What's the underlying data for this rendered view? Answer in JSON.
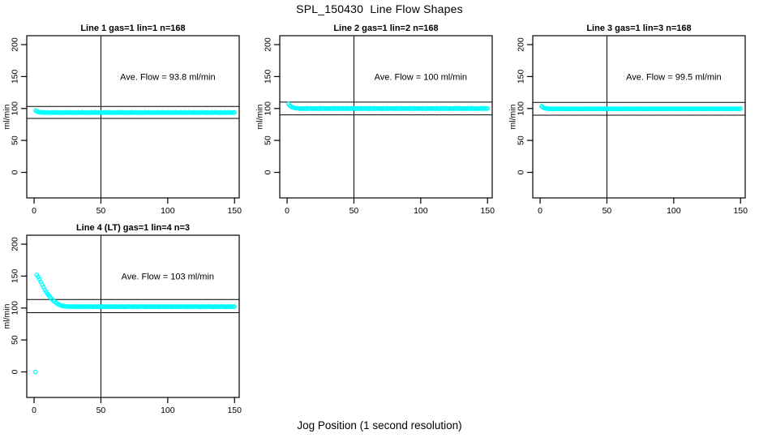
{
  "figure": {
    "title": "SPL_150430  Line Flow Shapes",
    "xlabel": "Jog Position (1 second resolution)",
    "ylabel": "ml/min",
    "background_color": "#FFFFFF",
    "axis_color": "#000000",
    "point_color": "#00FFFF"
  },
  "chart_data": {
    "type": "scatter",
    "layout_hint": "2x3 grid of panels, 4 panels used (top-left, top-middle, top-right, bottom-left); open-circle cyan markers; black box axes; horizontal reference lines at +/-10% of average flow; vertical reference line at x=50; y tick labels rotated 90deg",
    "xlabel": "Jog Position (1 second resolution)",
    "ylabel": "ml/min",
    "plots": [
      {
        "title": "Line 1 gas=1 lin=1 n=168",
        "annotation": "Ave. Flow =  93.8  ml/min",
        "ave_flow_ml_min": 93.8,
        "n": 168,
        "annotation_xy": [
          100,
          150
        ],
        "ref_lines_y": [
          103.2,
          84.4
        ],
        "ref_line_x": 50,
        "xticks": [
          0,
          50,
          100,
          150
        ],
        "yticks": [
          0,
          50,
          100,
          150,
          200
        ],
        "xlim": [
          -5.5,
          153.5
        ],
        "ylim": [
          -40,
          214
        ],
        "x_start": 1,
        "x_step": 1,
        "y_values": [
          96.8,
          95.4,
          94.7,
          94.2,
          94.0,
          94.1,
          93.5,
          93.9,
          93.3,
          94.0,
          93.6,
          93.4,
          94.2,
          93.5,
          93.8,
          94.1,
          93.5,
          93.9,
          93.3,
          94.0,
          93.6,
          93.4,
          94.2,
          93.5,
          93.8,
          94.1,
          93.5,
          93.9,
          93.3,
          94.0,
          93.6,
          93.4,
          94.2,
          93.5,
          93.8,
          94.1,
          93.5,
          93.9,
          93.3,
          94.0,
          93.6,
          93.4,
          94.2,
          93.5,
          93.8,
          94.1,
          93.5,
          93.9,
          93.3,
          94.0,
          93.6,
          93.4,
          94.2,
          93.5,
          93.8,
          94.1,
          93.5,
          93.9,
          93.3,
          94.0,
          93.6,
          93.4,
          94.2,
          93.5,
          93.8,
          94.1,
          93.5,
          93.9,
          93.3,
          94.0,
          93.6,
          93.4,
          94.2,
          93.5,
          93.8,
          94.1,
          93.5,
          93.9,
          93.3,
          94.0,
          93.6,
          93.4,
          94.2,
          93.5,
          93.8,
          94.1,
          93.5,
          93.9,
          93.3,
          94.0,
          93.6,
          93.4,
          94.2,
          93.5,
          93.8,
          94.1,
          93.5,
          93.9,
          93.3,
          94.0,
          93.6,
          93.4,
          94.2,
          93.5,
          93.8,
          94.1,
          93.5,
          93.9,
          93.3,
          94.0,
          93.6,
          93.4,
          94.2,
          93.5,
          93.8,
          94.1,
          93.5,
          93.9,
          93.3,
          94.0,
          93.6,
          93.4,
          94.2,
          93.5,
          93.8,
          94.1,
          93.5,
          93.9,
          93.3,
          94.0,
          93.6,
          93.4,
          94.2,
          93.5,
          93.8,
          94.1,
          93.5,
          93.9,
          93.3,
          94.0,
          93.6,
          93.4,
          94.2,
          93.5,
          93.8,
          94.1,
          93.5,
          93.9,
          93.3,
          94.0
        ]
      },
      {
        "title": "Line 2 gas=1 lin=2 n=168",
        "annotation": "Ave. Flow =  100  ml/min",
        "ave_flow_ml_min": 100,
        "n": 168,
        "annotation_xy": [
          100,
          150
        ],
        "ref_lines_y": [
          110.0,
          90.0
        ],
        "ref_line_x": 50,
        "xticks": [
          0,
          50,
          100,
          150
        ],
        "yticks": [
          0,
          50,
          100,
          150,
          200
        ],
        "xlim": [
          -5.5,
          153.5
        ],
        "ylim": [
          -40,
          214
        ],
        "x_start": 1,
        "x_step": 1,
        "y_values": [
          107.0,
          104.5,
          102.8,
          101.8,
          101.2,
          100.7,
          100.4,
          100.3,
          99.7,
          100.1,
          99.5,
          100.2,
          99.8,
          99.6,
          100.4,
          99.7,
          100.0,
          100.3,
          99.7,
          100.1,
          99.5,
          100.2,
          99.8,
          99.6,
          100.4,
          99.7,
          100.0,
          100.3,
          99.7,
          100.1,
          99.5,
          100.2,
          99.8,
          99.6,
          100.4,
          99.7,
          100.0,
          100.3,
          99.7,
          100.1,
          99.5,
          100.2,
          99.8,
          99.6,
          100.4,
          99.7,
          100.0,
          100.3,
          99.7,
          100.1,
          99.5,
          100.2,
          99.8,
          99.6,
          100.4,
          99.7,
          100.0,
          100.3,
          99.7,
          100.1,
          99.5,
          100.2,
          99.8,
          99.6,
          100.4,
          99.7,
          100.0,
          100.3,
          99.7,
          100.1,
          99.5,
          100.2,
          99.8,
          99.6,
          100.4,
          99.7,
          100.0,
          100.3,
          99.7,
          100.1,
          99.5,
          100.2,
          99.8,
          99.6,
          100.4,
          99.7,
          100.0,
          100.3,
          99.7,
          100.1,
          99.5,
          100.2,
          99.8,
          99.6,
          100.4,
          99.7,
          100.0,
          100.3,
          99.7,
          100.1,
          99.5,
          100.2,
          99.8,
          99.6,
          100.4,
          99.7,
          100.0,
          100.3,
          99.7,
          100.1,
          99.5,
          100.2,
          99.8,
          99.6,
          100.4,
          99.7,
          100.0,
          100.3,
          99.7,
          100.1,
          99.5,
          100.2,
          99.8,
          99.6,
          100.4,
          99.7,
          100.0,
          100.3,
          99.7,
          100.1,
          99.5,
          100.2,
          99.8,
          99.6,
          100.4,
          99.7,
          100.0,
          100.3,
          99.7,
          100.1,
          99.5,
          100.2,
          99.8,
          99.6,
          100.4,
          99.7,
          100.0,
          100.3,
          99.7,
          100.1
        ]
      },
      {
        "title": "Line 3 gas=1 lin=3 n=168",
        "annotation": "Ave. Flow =  99.5  ml/min",
        "ave_flow_ml_min": 99.5,
        "n": 168,
        "annotation_xy": [
          100,
          150
        ],
        "ref_lines_y": [
          109.5,
          89.6
        ],
        "ref_line_x": 50,
        "xticks": [
          0,
          50,
          100,
          150
        ],
        "yticks": [
          0,
          50,
          100,
          150,
          200
        ],
        "xlim": [
          -5.5,
          153.5
        ],
        "ylim": [
          -40,
          214
        ],
        "x_start": 1,
        "x_step": 1,
        "y_values": [
          103.5,
          102.0,
          101.0,
          100.4,
          100.0,
          99.7,
          99.3,
          99.6,
          99.2,
          99.8,
          99.4,
          99.3,
          99.7,
          99.4,
          99.6,
          99.7,
          99.3,
          99.6,
          99.2,
          99.8,
          99.4,
          99.3,
          99.7,
          99.4,
          99.6,
          99.7,
          99.3,
          99.6,
          99.2,
          99.8,
          99.4,
          99.3,
          99.7,
          99.4,
          99.6,
          99.7,
          99.3,
          99.6,
          99.2,
          99.8,
          99.4,
          99.3,
          99.7,
          99.4,
          99.6,
          99.7,
          99.3,
          99.6,
          99.2,
          99.8,
          99.4,
          99.3,
          99.7,
          99.4,
          99.6,
          99.7,
          99.3,
          99.6,
          99.2,
          99.8,
          99.4,
          99.3,
          99.7,
          99.4,
          99.6,
          99.7,
          99.3,
          99.6,
          99.2,
          99.8,
          99.4,
          99.3,
          99.7,
          99.4,
          99.6,
          99.7,
          99.3,
          99.6,
          99.2,
          99.8,
          99.4,
          99.3,
          99.7,
          99.4,
          99.6,
          99.7,
          99.3,
          99.6,
          99.2,
          99.8,
          99.4,
          99.3,
          99.7,
          99.4,
          99.6,
          99.7,
          99.3,
          99.6,
          99.2,
          99.8,
          99.4,
          99.3,
          99.7,
          99.4,
          99.6,
          99.7,
          99.3,
          99.6,
          99.2,
          99.8,
          99.4,
          99.3,
          99.7,
          99.4,
          99.6,
          99.7,
          99.3,
          99.6,
          99.2,
          99.8,
          99.4,
          99.3,
          99.7,
          99.4,
          99.6,
          99.7,
          99.3,
          99.6,
          99.2,
          99.8,
          99.4,
          99.3,
          99.7,
          99.4,
          99.6,
          99.7,
          99.3,
          99.6,
          99.2,
          99.8,
          99.4,
          99.3,
          99.7,
          99.4,
          99.6,
          99.7,
          99.3,
          99.6,
          99.2,
          99.8
        ]
      },
      {
        "title": "Line 4 (LT) gas=1 lin=4 n=3",
        "annotation": "Ave. Flow =  103  ml/min",
        "ave_flow_ml_min": 103,
        "n": 3,
        "annotation_xy": [
          100,
          150
        ],
        "ref_lines_y": [
          113.3,
          92.7
        ],
        "ref_line_x": 50,
        "xticks": [
          0,
          50,
          100,
          150
        ],
        "yticks": [
          0,
          50,
          100,
          150,
          200
        ],
        "xlim": [
          -5.5,
          153.5
        ],
        "ylim": [
          -40,
          214
        ],
        "x_start": 1,
        "x_step": 1,
        "y_values": [
          0,
          152.0,
          149.0,
          145.2,
          141.0,
          136.6,
          132.5,
          128.7,
          125.3,
          122.2,
          119.4,
          116.8,
          114.5,
          112.4,
          110.5,
          108.9,
          107.4,
          106.1,
          105.0,
          104.1,
          103.5,
          103.0,
          102.7,
          102.5,
          102.4,
          102.3,
          102.0,
          102.4,
          101.9,
          102.2,
          102.5,
          102.0,
          102.3,
          101.8,
          102.2,
          102.4,
          101.9,
          102.3,
          102.0,
          102.2,
          102.5,
          102.0,
          102.3,
          101.8,
          102.2,
          102.4,
          101.9,
          102.3,
          102.0,
          102.2,
          102.5,
          102.0,
          102.3,
          101.8,
          102.2,
          102.4,
          101.9,
          102.3,
          102.0,
          102.2,
          102.5,
          102.0,
          102.3,
          101.8,
          102.2,
          102.4,
          101.9,
          102.3,
          102.0,
          102.2,
          102.5,
          102.0,
          102.3,
          101.8,
          102.2,
          102.4,
          101.9,
          102.3,
          102.0,
          102.2,
          102.5,
          102.0,
          102.3,
          101.8,
          102.2,
          102.4,
          101.9,
          102.3,
          102.0,
          102.2,
          102.5,
          102.0,
          102.3,
          101.8,
          102.2,
          102.4,
          101.9,
          102.3,
          102.0,
          102.2,
          102.5,
          102.0,
          102.3,
          101.8,
          102.2,
          102.4,
          101.9,
          102.3,
          102.0,
          102.2,
          102.5,
          102.0,
          102.3,
          101.8,
          102.2,
          102.4,
          101.9,
          102.3,
          102.0,
          102.2,
          102.5,
          102.0,
          102.3,
          101.8,
          102.2,
          102.4,
          101.9,
          102.3,
          102.0,
          102.2,
          102.5,
          102.0,
          102.3,
          101.8,
          102.2,
          102.4,
          101.9,
          102.3,
          102.0,
          102.2,
          102.5,
          102.0,
          102.3,
          101.8,
          102.2,
          102.4,
          101.9,
          102.3,
          102.0,
          102.2
        ]
      }
    ]
  }
}
